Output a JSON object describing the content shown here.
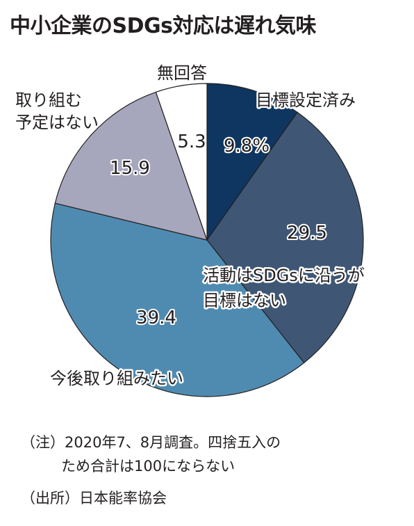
{
  "title": "中小企業のSDGs対応は遅れ気味",
  "chart_data": {
    "type": "pie",
    "unit": "%",
    "start_angle_deg": 0,
    "direction": "clockwise",
    "slices": [
      {
        "label": "目標設定済み",
        "value": 9.8,
        "display": "9.8%",
        "color": "#0e3660"
      },
      {
        "label": "活動はSDGsに沿うが目標はない",
        "value": 29.5,
        "display": "29.5",
        "color": "#3f5775"
      },
      {
        "label": "今後取り組みたい",
        "value": 39.4,
        "display": "39.4",
        "color": "#4f8bb1"
      },
      {
        "label": "取り組む予定はない",
        "value": 15.9,
        "display": "15.9",
        "color": "#a6a7bc"
      },
      {
        "label": "無回答",
        "value": 5.3,
        "display": "5.3",
        "color": "#ffffff"
      }
    ]
  },
  "notes": {
    "line1": "（注）2020年7、8月調査。四捨五入の",
    "line2": "ため合計は100にならない",
    "line3": "（出所）日本能率協会"
  }
}
